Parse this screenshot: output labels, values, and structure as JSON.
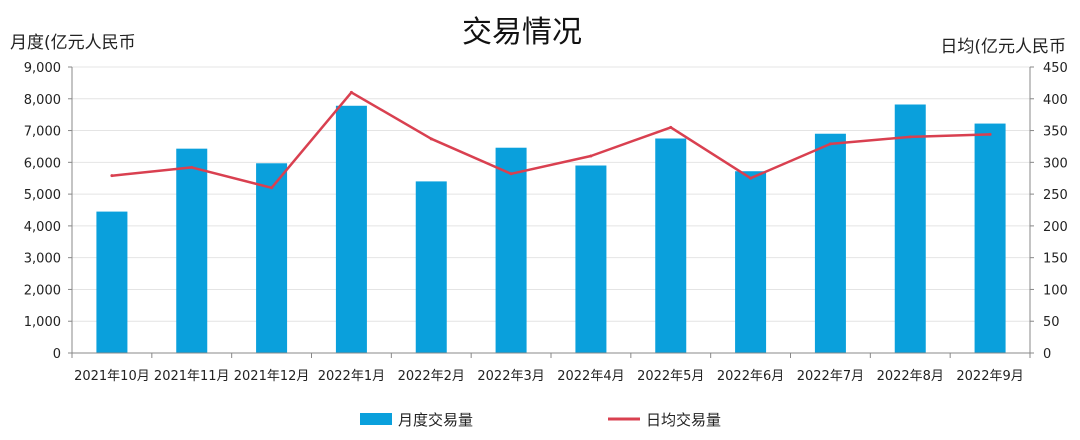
{
  "chart_data": {
    "type": "bar",
    "title": "交易情况",
    "ylabel_left": "月度(亿元人民币",
    "ylabel_right": "日均(亿元人民币",
    "categories": [
      "2021年10月",
      "2021年11月",
      "2021年12月",
      "2022年1月",
      "2022年2月",
      "2022年3月",
      "2022年4月",
      "2022年5月",
      "2022年6月",
      "2022年7月",
      "2022年8月",
      "2022年9月"
    ],
    "series": [
      {
        "name": "月度交易量",
        "type": "bar",
        "axis": "left",
        "color": "#0AA0DC",
        "values": [
          4450,
          6430,
          5970,
          7780,
          5400,
          6460,
          5900,
          6750,
          5720,
          6900,
          7820,
          7220
        ]
      },
      {
        "name": "日均交易量",
        "type": "line",
        "axis": "right",
        "color": "#D94050",
        "values": [
          279,
          292,
          260,
          410,
          337,
          282,
          310,
          355,
          275,
          329,
          340,
          344
        ]
      }
    ],
    "ylim_left": [
      0,
      9000
    ],
    "ylim_right": [
      0,
      450
    ],
    "yticks_left": [
      "0",
      "1,000",
      "2,000",
      "3,000",
      "4,000",
      "5,000",
      "6,000",
      "7,000",
      "8,000",
      "9,000"
    ],
    "yticks_right": [
      "0",
      "50",
      "100",
      "150",
      "200",
      "250",
      "300",
      "350",
      "400",
      "450"
    ],
    "grid": true,
    "legend": "bottom"
  }
}
